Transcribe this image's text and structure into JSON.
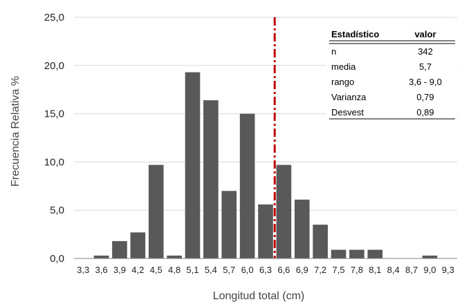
{
  "chart_data": {
    "type": "bar",
    "xlabel": "Longitud total (cm)",
    "ylabel": "Frecuencia Relativa %",
    "ylim": [
      0,
      25
    ],
    "yticks": [
      "0,0",
      "5,0",
      "10,0",
      "15,0",
      "20,0",
      "25,0"
    ],
    "categories": [
      "3,3",
      "3,6",
      "3,9",
      "4,2",
      "4,5",
      "4,8",
      "5,1",
      "5,4",
      "5,7",
      "6,0",
      "6,3",
      "6,6",
      "6,9",
      "7,2",
      "7,5",
      "7,8",
      "8,1",
      "8,4",
      "8,7",
      "9,0",
      "9,3"
    ],
    "values": [
      0,
      0.3,
      1.8,
      2.7,
      9.7,
      0.3,
      19.3,
      16.4,
      7.0,
      15.0,
      5.6,
      9.7,
      6.1,
      3.5,
      0.9,
      0.9,
      0.9,
      0,
      0,
      0.3,
      0
    ],
    "reference_line": {
      "x_position": 6.45,
      "style": "dash-dot",
      "color": "#c00000"
    },
    "grid": "horizontal",
    "bar_color": "#595959",
    "stats_table": {
      "headers": [
        "Estadístico",
        "valor"
      ],
      "rows": [
        [
          "n",
          "342"
        ],
        [
          "media",
          "5,7"
        ],
        [
          "rango",
          "3,6 - 9,0"
        ],
        [
          "Varianza",
          "0,79"
        ],
        [
          "Desvest",
          "0,89"
        ]
      ],
      "placement": "top-right"
    }
  }
}
